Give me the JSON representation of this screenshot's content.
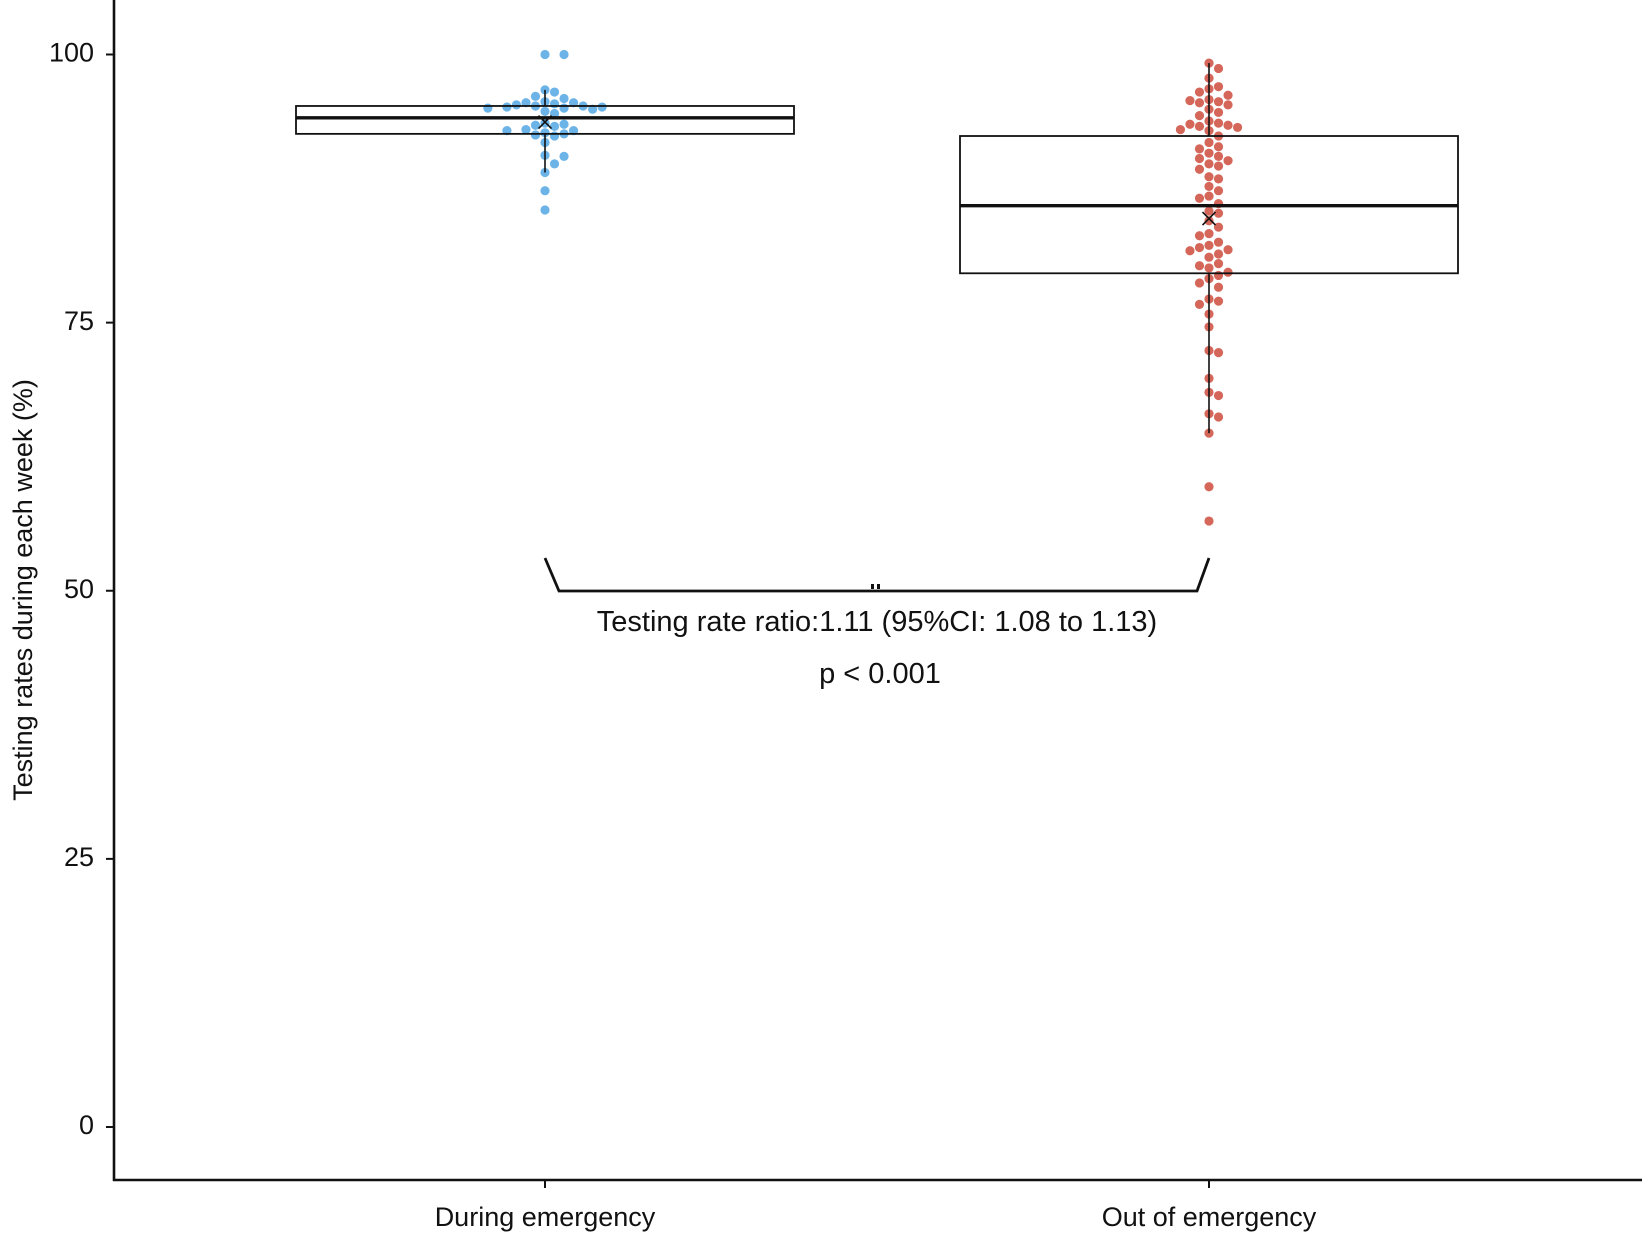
{
  "chart_data": {
    "type": "box",
    "title": "",
    "xlabel": "",
    "ylabel": "Testing rates during each week (%)",
    "ylim": [
      -4,
      105
    ],
    "yticks": [
      0,
      25,
      50,
      75,
      100
    ],
    "grid": false,
    "legend": null,
    "categories": [
      "During emergency",
      "Out of emergency"
    ],
    "series": [
      {
        "name": "During emergency",
        "color": "#6cb4e8",
        "box": {
          "whisker_low": 89.0,
          "q1": 92.6,
          "median": 94.1,
          "q3": 95.2,
          "whisker_high": 96.7,
          "mean": 93.7
        },
        "points": [
          100,
          100,
          96.7,
          96.5,
          96.1,
          95.9,
          95.6,
          95.5,
          95.5,
          95.4,
          95.3,
          95.2,
          95.2,
          95.1,
          95.1,
          95.0,
          95.0,
          94.9,
          94.7,
          94.5,
          93.6,
          93.5,
          93.4,
          93.3,
          93.0,
          92.9,
          92.9,
          92.7,
          92.6,
          92.5,
          92.4,
          91.8,
          90.6,
          90.5,
          89.8,
          89.0,
          87.3,
          85.5
        ]
      },
      {
        "name": "Out of emergency",
        "color": "#d4675a",
        "box": {
          "whisker_low": 64.7,
          "q1": 79.6,
          "median": 85.9,
          "q3": 92.4,
          "whisker_high": 99.2,
          "mean": 84.7
        },
        "points": [
          99.2,
          98.7,
          97.8,
          97.0,
          96.8,
          96.5,
          96.2,
          95.8,
          95.7,
          95.6,
          95.5,
          95.3,
          94.9,
          94.6,
          94.3,
          93.8,
          93.6,
          93.5,
          93.4,
          93.3,
          93.2,
          93.0,
          92.9,
          92.4,
          91.8,
          91.4,
          91.2,
          90.8,
          90.5,
          90.3,
          90.1,
          89.8,
          89.6,
          89.3,
          88.6,
          88.4,
          87.7,
          87.3,
          86.8,
          86.6,
          86.1,
          85.4,
          85.2,
          84.5,
          83.9,
          83.3,
          83.1,
          82.5,
          82.2,
          82.0,
          81.8,
          81.7,
          81.4,
          81.1,
          80.5,
          80.3,
          80.1,
          79.7,
          79.4,
          79.1,
          78.7,
          78.3,
          77.2,
          77.0,
          76.7,
          75.8,
          74.6,
          72.4,
          72.2,
          69.8,
          68.5,
          68.2,
          66.5,
          66.2,
          64.7,
          59.7,
          56.5
        ]
      }
    ],
    "annotations": {
      "comparison_line1": "Testing rate ratio:1.11 (95%CI: 1.08 to 1.13)",
      "comparison_line2": "p < 0.001"
    }
  }
}
